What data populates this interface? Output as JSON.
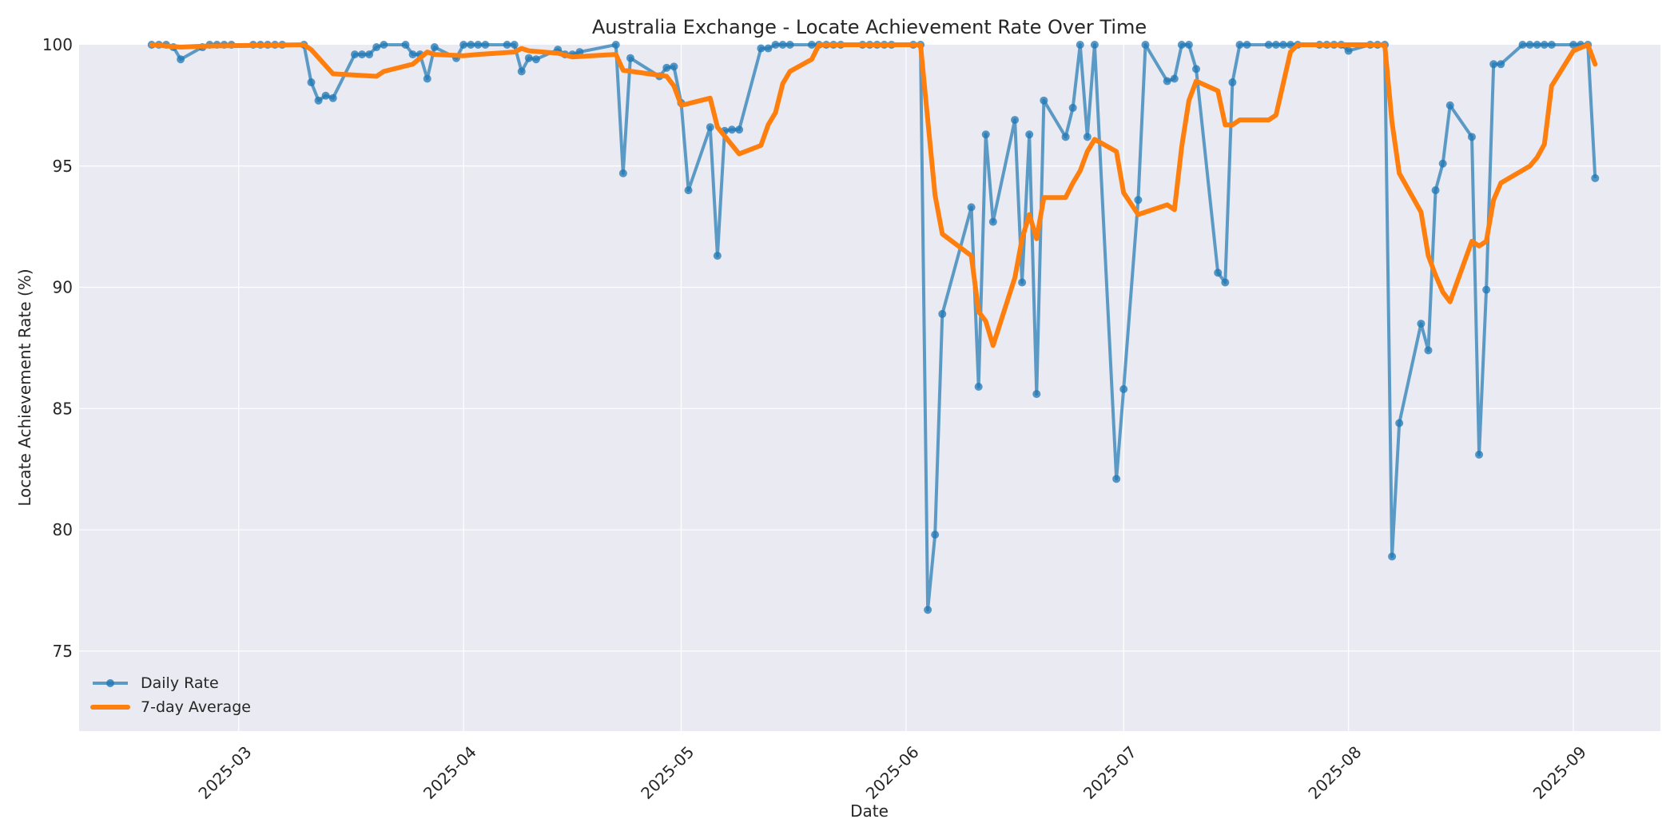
{
  "chart_data": {
    "type": "line",
    "title": "Australia Exchange - Locate Achievement Rate Over Time",
    "xlabel": "Date",
    "ylabel": "Locate Achievement Rate (%)",
    "ylim": [
      71.7,
      100
    ],
    "xlim": [
      "2025-02-07",
      "2025-09-13"
    ],
    "grid": true,
    "legend_position": "lower left",
    "yticks": [
      75,
      80,
      85,
      90,
      95,
      100
    ],
    "xticks": [
      "2025-03",
      "2025-04",
      "2025-05",
      "2025-06",
      "2025-07",
      "2025-08",
      "2025-09"
    ],
    "colors": {
      "daily": "#1f77b4",
      "average": "#ff7f0e",
      "plot_bg": "#eaeaf2",
      "grid": "#ffffff"
    },
    "series": [
      {
        "name": "Daily Rate",
        "style": "line-with-markers",
        "points": [
          [
            "2025-02-17",
            100
          ],
          [
            "2025-02-18",
            100
          ],
          [
            "2025-02-19",
            100
          ],
          [
            "2025-02-20",
            99.9
          ],
          [
            "2025-02-21",
            99.4
          ],
          [
            "2025-02-24",
            99.9
          ],
          [
            "2025-02-25",
            100
          ],
          [
            "2025-02-26",
            100
          ],
          [
            "2025-02-27",
            100
          ],
          [
            "2025-02-28",
            100
          ],
          [
            "2025-03-03",
            100
          ],
          [
            "2025-03-04",
            100
          ],
          [
            "2025-03-05",
            100
          ],
          [
            "2025-03-06",
            100
          ],
          [
            "2025-03-07",
            100
          ],
          [
            "2025-03-10",
            100
          ],
          [
            "2025-03-11",
            98.45
          ],
          [
            "2025-03-12",
            97.7
          ],
          [
            "2025-03-13",
            97.9
          ],
          [
            "2025-03-14",
            97.8
          ],
          [
            "2025-03-17",
            99.6
          ],
          [
            "2025-03-18",
            99.6
          ],
          [
            "2025-03-19",
            99.6
          ],
          [
            "2025-03-20",
            99.9
          ],
          [
            "2025-03-21",
            100
          ],
          [
            "2025-03-24",
            100
          ],
          [
            "2025-03-25",
            99.6
          ],
          [
            "2025-03-26",
            99.6
          ],
          [
            "2025-03-27",
            98.6
          ],
          [
            "2025-03-28",
            99.9
          ],
          [
            "2025-03-31",
            99.45
          ],
          [
            "2025-04-01",
            100
          ],
          [
            "2025-04-02",
            100
          ],
          [
            "2025-04-03",
            100
          ],
          [
            "2025-04-04",
            100
          ],
          [
            "2025-04-07",
            100
          ],
          [
            "2025-04-08",
            100
          ],
          [
            "2025-04-09",
            98.9
          ],
          [
            "2025-04-10",
            99.45
          ],
          [
            "2025-04-11",
            99.4
          ],
          [
            "2025-04-14",
            99.8
          ],
          [
            "2025-04-15",
            99.6
          ],
          [
            "2025-04-16",
            99.6
          ],
          [
            "2025-04-17",
            99.7
          ],
          [
            "2025-04-22",
            100
          ],
          [
            "2025-04-23",
            94.7
          ],
          [
            "2025-04-24",
            99.45
          ],
          [
            "2025-04-28",
            98.7
          ],
          [
            "2025-04-29",
            99.05
          ],
          [
            "2025-04-30",
            99.1
          ],
          [
            "2025-05-01",
            97.6
          ],
          [
            "2025-05-02",
            94.0
          ],
          [
            "2025-05-05",
            96.6
          ],
          [
            "2025-05-06",
            91.3
          ],
          [
            "2025-05-07",
            96.45
          ],
          [
            "2025-05-08",
            96.5
          ],
          [
            "2025-05-09",
            96.5
          ],
          [
            "2025-05-12",
            99.85
          ],
          [
            "2025-05-13",
            99.85
          ],
          [
            "2025-05-14",
            100
          ],
          [
            "2025-05-15",
            100
          ],
          [
            "2025-05-16",
            100
          ],
          [
            "2025-05-19",
            100
          ],
          [
            "2025-05-20",
            100
          ],
          [
            "2025-05-21",
            100
          ],
          [
            "2025-05-22",
            100
          ],
          [
            "2025-05-23",
            100
          ],
          [
            "2025-05-26",
            100
          ],
          [
            "2025-05-27",
            100
          ],
          [
            "2025-05-28",
            100
          ],
          [
            "2025-05-29",
            100
          ],
          [
            "2025-05-30",
            100
          ],
          [
            "2025-06-02",
            100
          ],
          [
            "2025-06-03",
            100
          ],
          [
            "2025-06-04",
            76.7
          ],
          [
            "2025-06-05",
            79.8
          ],
          [
            "2025-06-06",
            88.9
          ],
          [
            "2025-06-10",
            93.3
          ],
          [
            "2025-06-11",
            85.9
          ],
          [
            "2025-06-12",
            96.3
          ],
          [
            "2025-06-13",
            92.7
          ],
          [
            "2025-06-16",
            96.9
          ],
          [
            "2025-06-17",
            90.2
          ],
          [
            "2025-06-18",
            96.3
          ],
          [
            "2025-06-19",
            85.6
          ],
          [
            "2025-06-20",
            97.7
          ],
          [
            "2025-06-23",
            96.2
          ],
          [
            "2025-06-24",
            97.4
          ],
          [
            "2025-06-25",
            100
          ],
          [
            "2025-06-26",
            96.2
          ],
          [
            "2025-06-27",
            100
          ],
          [
            "2025-06-30",
            82.1
          ],
          [
            "2025-07-01",
            85.8
          ],
          [
            "2025-07-03",
            93.6
          ],
          [
            "2025-07-04",
            100
          ],
          [
            "2025-07-07",
            98.5
          ],
          [
            "2025-07-08",
            98.6
          ],
          [
            "2025-07-09",
            100
          ],
          [
            "2025-07-10",
            100
          ],
          [
            "2025-07-11",
            99.0
          ],
          [
            "2025-07-14",
            90.6
          ],
          [
            "2025-07-15",
            90.2
          ],
          [
            "2025-07-16",
            98.45
          ],
          [
            "2025-07-17",
            100
          ],
          [
            "2025-07-18",
            100
          ],
          [
            "2025-07-21",
            100
          ],
          [
            "2025-07-22",
            100
          ],
          [
            "2025-07-23",
            100
          ],
          [
            "2025-07-24",
            100
          ],
          [
            "2025-07-25",
            100
          ],
          [
            "2025-07-28",
            100
          ],
          [
            "2025-07-29",
            100
          ],
          [
            "2025-07-30",
            100
          ],
          [
            "2025-07-31",
            100
          ],
          [
            "2025-08-01",
            99.75
          ],
          [
            "2025-08-04",
            100
          ],
          [
            "2025-08-05",
            100
          ],
          [
            "2025-08-06",
            100
          ],
          [
            "2025-08-07",
            78.9
          ],
          [
            "2025-08-08",
            84.4
          ],
          [
            "2025-08-11",
            88.5
          ],
          [
            "2025-08-12",
            87.4
          ],
          [
            "2025-08-13",
            94.0
          ],
          [
            "2025-08-14",
            95.1
          ],
          [
            "2025-08-15",
            97.5
          ],
          [
            "2025-08-18",
            96.2
          ],
          [
            "2025-08-19",
            83.1
          ],
          [
            "2025-08-20",
            89.9
          ],
          [
            "2025-08-21",
            99.2
          ],
          [
            "2025-08-22",
            99.2
          ],
          [
            "2025-08-25",
            100
          ],
          [
            "2025-08-26",
            100
          ],
          [
            "2025-08-27",
            100
          ],
          [
            "2025-08-28",
            100
          ],
          [
            "2025-08-29",
            100
          ],
          [
            "2025-09-01",
            100
          ],
          [
            "2025-09-02",
            100
          ],
          [
            "2025-09-03",
            100
          ],
          [
            "2025-09-04",
            94.5
          ]
        ]
      },
      {
        "name": "7-day Average",
        "style": "thick-line",
        "points": [
          [
            "2025-02-17",
            100
          ],
          [
            "2025-02-21",
            99.9
          ],
          [
            "2025-02-25",
            99.95
          ],
          [
            "2025-03-10",
            100
          ],
          [
            "2025-03-11",
            99.8
          ],
          [
            "2025-03-14",
            98.8
          ],
          [
            "2025-03-20",
            98.7
          ],
          [
            "2025-03-21",
            98.9
          ],
          [
            "2025-03-25",
            99.2
          ],
          [
            "2025-03-27",
            99.7
          ],
          [
            "2025-03-28",
            99.6
          ],
          [
            "2025-04-01",
            99.55
          ],
          [
            "2025-04-03",
            99.6
          ],
          [
            "2025-04-08",
            99.7
          ],
          [
            "2025-04-09",
            99.85
          ],
          [
            "2025-04-10",
            99.75
          ],
          [
            "2025-04-14",
            99.65
          ],
          [
            "2025-04-16",
            99.5
          ],
          [
            "2025-04-22",
            99.6
          ],
          [
            "2025-04-23",
            98.95
          ],
          [
            "2025-04-29",
            98.7
          ],
          [
            "2025-04-30",
            98.3
          ],
          [
            "2025-05-01",
            97.5
          ],
          [
            "2025-05-05",
            97.8
          ],
          [
            "2025-05-06",
            96.6
          ],
          [
            "2025-05-09",
            95.5
          ],
          [
            "2025-05-12",
            95.85
          ],
          [
            "2025-05-13",
            96.7
          ],
          [
            "2025-05-14",
            97.2
          ],
          [
            "2025-05-15",
            98.4
          ],
          [
            "2025-05-16",
            98.9
          ],
          [
            "2025-05-19",
            99.4
          ],
          [
            "2025-05-20",
            100
          ],
          [
            "2025-06-03",
            100
          ],
          [
            "2025-06-05",
            93.8
          ],
          [
            "2025-06-06",
            92.2
          ],
          [
            "2025-06-10",
            91.3
          ],
          [
            "2025-06-11",
            89.0
          ],
          [
            "2025-06-12",
            88.6
          ],
          [
            "2025-06-13",
            87.6
          ],
          [
            "2025-06-16",
            90.4
          ],
          [
            "2025-06-17",
            92.0
          ],
          [
            "2025-06-18",
            93.0
          ],
          [
            "2025-06-19",
            92.0
          ],
          [
            "2025-06-20",
            93.7
          ],
          [
            "2025-06-23",
            93.7
          ],
          [
            "2025-06-24",
            94.3
          ],
          [
            "2025-06-25",
            94.8
          ],
          [
            "2025-06-26",
            95.6
          ],
          [
            "2025-06-27",
            96.1
          ],
          [
            "2025-06-30",
            95.6
          ],
          [
            "2025-07-01",
            93.9
          ],
          [
            "2025-07-03",
            93.0
          ],
          [
            "2025-07-07",
            93.4
          ],
          [
            "2025-07-08",
            93.2
          ],
          [
            "2025-07-09",
            95.8
          ],
          [
            "2025-07-10",
            97.7
          ],
          [
            "2025-07-11",
            98.5
          ],
          [
            "2025-07-14",
            98.1
          ],
          [
            "2025-07-15",
            96.7
          ],
          [
            "2025-07-16",
            96.7
          ],
          [
            "2025-07-17",
            96.9
          ],
          [
            "2025-07-21",
            96.9
          ],
          [
            "2025-07-22",
            97.1
          ],
          [
            "2025-07-24",
            99.7
          ],
          [
            "2025-07-25",
            100
          ],
          [
            "2025-08-06",
            100
          ],
          [
            "2025-08-07",
            96.8
          ],
          [
            "2025-08-08",
            94.7
          ],
          [
            "2025-08-11",
            93.1
          ],
          [
            "2025-08-12",
            91.3
          ],
          [
            "2025-08-13",
            90.5
          ],
          [
            "2025-08-14",
            89.8
          ],
          [
            "2025-08-15",
            89.4
          ],
          [
            "2025-08-18",
            91.9
          ],
          [
            "2025-08-19",
            91.7
          ],
          [
            "2025-08-20",
            91.9
          ],
          [
            "2025-08-21",
            93.6
          ],
          [
            "2025-08-22",
            94.3
          ],
          [
            "2025-08-26",
            95.0
          ],
          [
            "2025-08-27",
            95.35
          ],
          [
            "2025-08-28",
            95.9
          ],
          [
            "2025-08-29",
            98.3
          ],
          [
            "2025-09-01",
            99.75
          ],
          [
            "2025-09-03",
            100
          ],
          [
            "2025-09-04",
            99.2
          ]
        ]
      }
    ]
  },
  "legend": {
    "items": [
      {
        "label": "Daily Rate"
      },
      {
        "label": "7-day Average"
      }
    ]
  }
}
